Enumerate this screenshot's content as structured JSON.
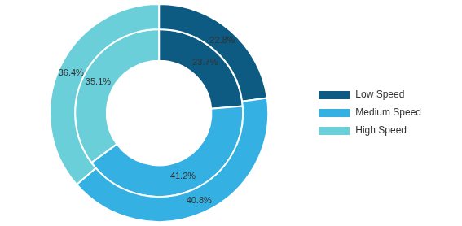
{
  "chart_data": {
    "type": "doughnut",
    "categories": [
      "Low Speed",
      "Medium Speed",
      "High Speed"
    ],
    "colors": [
      "#0d5a82",
      "#35b0e2",
      "#6bcfda"
    ],
    "series": [
      {
        "values": [
          22.8,
          40.8,
          36.4
        ],
        "value_labels": [
          "22.8%",
          "40.8%",
          "36.4%"
        ]
      },
      {
        "values": [
          23.7,
          41.2,
          35.1
        ],
        "value_labels": [
          "23.7%",
          "41.2%",
          "35.1%"
        ]
      }
    ],
    "data_labels": true,
    "legend": "right"
  }
}
